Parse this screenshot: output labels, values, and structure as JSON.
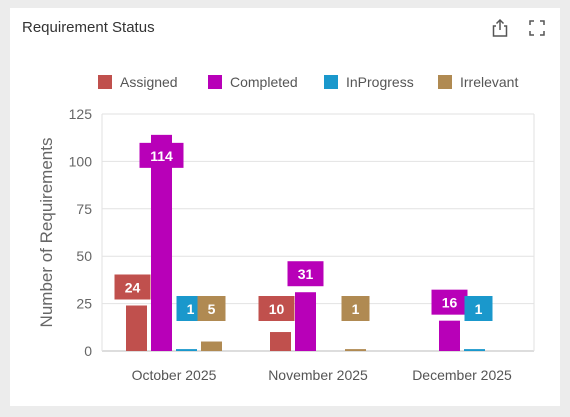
{
  "widget": {
    "title": "Requirement Status",
    "export_icon": "share-export-icon",
    "fullscreen_icon": "expand-fullscreen-icon"
  },
  "chart_data": {
    "type": "bar",
    "title": "Requirement Status",
    "xlabel": "",
    "ylabel": "Number of Requirements",
    "ylim": [
      0,
      125
    ],
    "yticks": [
      0,
      25,
      50,
      75,
      100,
      125
    ],
    "grid": true,
    "legend_position": "top",
    "categories": [
      "October 2025",
      "November 2025",
      "December 2025"
    ],
    "series": [
      {
        "name": "Assigned",
        "color": "#c0504d",
        "values": [
          24,
          10,
          0
        ]
      },
      {
        "name": "Completed",
        "color": "#b800b8",
        "values": [
          114,
          31,
          16
        ]
      },
      {
        "name": "InProgress",
        "color": "#1a98cc",
        "values": [
          1,
          0,
          1
        ]
      },
      {
        "name": "Irrelevant",
        "color": "#b08a52",
        "values": [
          5,
          1,
          0
        ]
      }
    ]
  }
}
